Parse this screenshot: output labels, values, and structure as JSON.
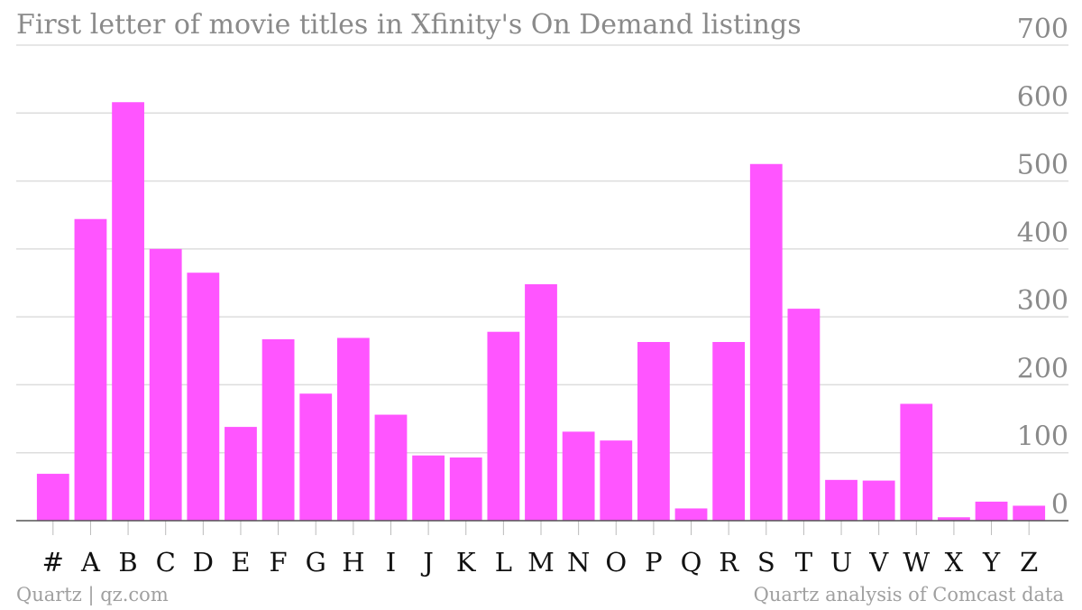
{
  "colors": {
    "bar": "#ff55ff",
    "grid": "#dddddd",
    "axis": "#555555",
    "ytick_text": "#8a8a8a",
    "xtick_text": "#111111",
    "footer_text": "#a0a0a0"
  },
  "footer": {
    "source_left": "Quartz | qz.com",
    "source_right": "Quartz analysis of Comcast data"
  },
  "chart_data": {
    "type": "bar",
    "title": "First letter of movie titles in Xfinity's On Demand listings",
    "xlabel": "",
    "ylabel": "",
    "categories": [
      "#",
      "A",
      "B",
      "C",
      "D",
      "E",
      "F",
      "G",
      "H",
      "I",
      "J",
      "K",
      "L",
      "M",
      "N",
      "O",
      "P",
      "Q",
      "R",
      "S",
      "T",
      "U",
      "V",
      "W",
      "X",
      "Y",
      "Z"
    ],
    "values": [
      69,
      444,
      616,
      400,
      365,
      138,
      267,
      187,
      269,
      156,
      96,
      93,
      278,
      348,
      131,
      118,
      263,
      18,
      263,
      525,
      312,
      60,
      59,
      172,
      5,
      28,
      22
    ],
    "ylim": [
      0,
      700
    ],
    "yticks": [
      0,
      100,
      200,
      300,
      400,
      500,
      600,
      700
    ],
    "ytick_labels": [
      "0",
      "100",
      "200",
      "300",
      "400",
      "500",
      "600",
      "700"
    ],
    "y_axis_side": "right",
    "grid": true,
    "legend": "none"
  }
}
